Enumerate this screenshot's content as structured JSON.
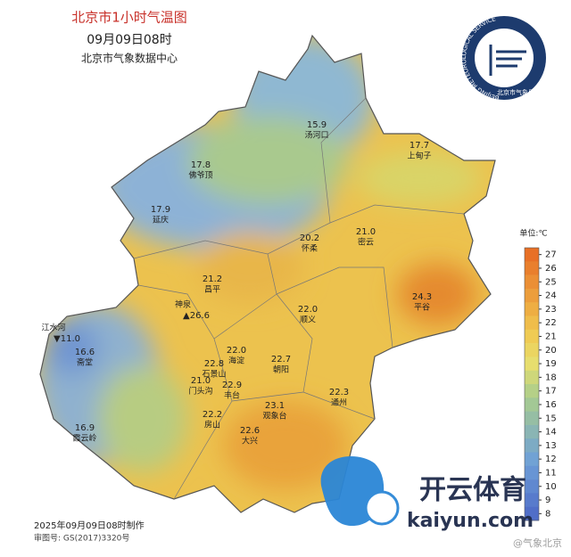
{
  "header": {
    "title": "北京市1小时气温图",
    "time": "09月09日08时",
    "source": "北京市气象数据中心"
  },
  "logo": {
    "ring_text": "BEIJING METEOROLOGICAL SERVICE",
    "name": "北京市气象局"
  },
  "stations": [
    {
      "value": "15.9",
      "name": "汤河口"
    },
    {
      "value": "17.7",
      "name": "上甸子"
    },
    {
      "value": "17.8",
      "name": "佛爷顶"
    },
    {
      "value": "17.9",
      "name": "延庆"
    },
    {
      "value": "21.0",
      "name": "密云"
    },
    {
      "value": "20.2",
      "name": "怀柔"
    },
    {
      "value": "21.2",
      "name": "昌平"
    },
    {
      "value": "24.3",
      "name": "平谷"
    },
    {
      "value": "26.6",
      "name": "神泉",
      "marker": "▲"
    },
    {
      "value": "11.0",
      "name": "江水河",
      "marker": "▼"
    },
    {
      "value": "22.0",
      "name": "顺义"
    },
    {
      "value": "16.6",
      "name": "斋堂"
    },
    {
      "value": "22.0",
      "name": "海淀"
    },
    {
      "value": "22.7",
      "name": "朝阳"
    },
    {
      "value": "22.8",
      "name": "石景山"
    },
    {
      "value": "21.0",
      "name": "门头沟"
    },
    {
      "value": "22.9",
      "name": "丰台"
    },
    {
      "value": "22.3",
      "name": "通州"
    },
    {
      "value": "23.1",
      "name": "观象台"
    },
    {
      "value": "22.2",
      "name": "房山"
    },
    {
      "value": "16.9",
      "name": "霞云岭"
    },
    {
      "value": "22.6",
      "name": "大兴"
    }
  ],
  "legend": {
    "unit": "单位:℃",
    "ticks": [
      27,
      26,
      25,
      24,
      23,
      22,
      21,
      20,
      19,
      18,
      17,
      16,
      15,
      14,
      13,
      12,
      11,
      10,
      9,
      8
    ]
  },
  "footer": {
    "made": "2025年09月09日08时制作",
    "approval": "审图号: GS(2017)3320号"
  },
  "watermark": {
    "brand": "开云体育",
    "domain": "kaiyun.com",
    "account": "@气象北京"
  }
}
